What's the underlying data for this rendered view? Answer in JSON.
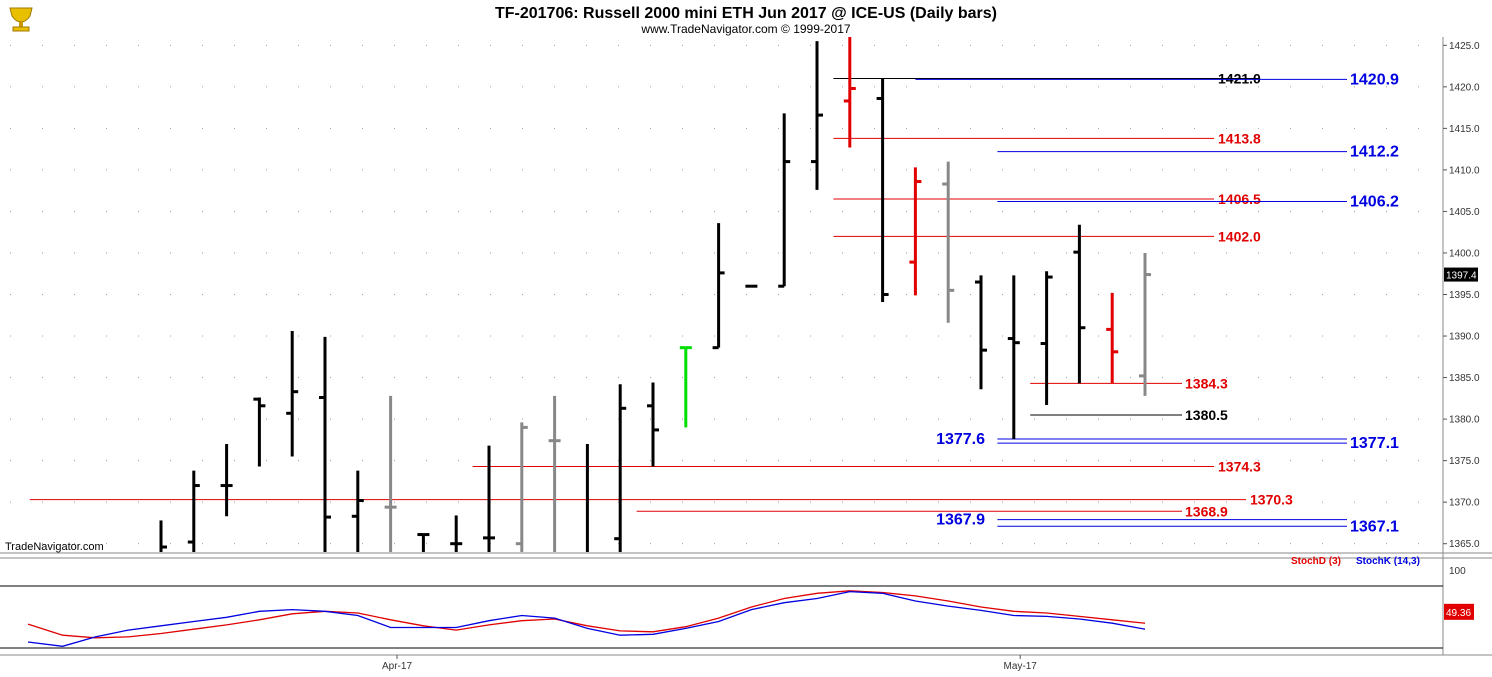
{
  "header": {
    "title": "TF-201706:  Russell 2000 mini ETH Jun 2017 @ ICE-US  (Daily bars)",
    "subtitle": "www.TradeNavigator.com © 1999-2017",
    "watermark": "TradeNavigator.com",
    "logo": "trophy-logo-icon"
  },
  "colors": {
    "black": "#000000",
    "red": "#e00000",
    "blue": "#0000e0",
    "gray": "#888888",
    "green": "#00dd00"
  },
  "chart_data": [
    {
      "type": "ohlc",
      "ylim": [
        1364,
        1426
      ],
      "yticks": [
        {
          "v": 1365,
          "label": "1365.0"
        },
        {
          "v": 1370,
          "label": "1370.0"
        },
        {
          "v": 1375,
          "label": "1375.0"
        },
        {
          "v": 1380,
          "label": "1380.0"
        },
        {
          "v": 1385,
          "label": "1385.0"
        },
        {
          "v": 1390,
          "label": "1390.0"
        },
        {
          "v": 1395,
          "label": "1395.0"
        },
        {
          "v": 1400,
          "label": "1400.0"
        },
        {
          "v": 1405,
          "label": "1405.0"
        },
        {
          "v": 1410,
          "label": "1410.0"
        },
        {
          "v": 1415,
          "label": "1415.0"
        },
        {
          "v": 1420,
          "label": "1420.0"
        },
        {
          "v": 1425,
          "label": "1425.0"
        }
      ],
      "last_price": "1397.4",
      "xlabels": [
        {
          "label": "Apr-17",
          "bar": 7.5
        },
        {
          "label": "May-17",
          "bar": 26.5
        }
      ],
      "bars": [
        {
          "h": 1367.8,
          "l": 1364,
          "o": 1364,
          "c": 1364.6,
          "color": "black"
        },
        {
          "h": 1373.8,
          "l": 1364,
          "o": 1365.2,
          "c": 1372.0,
          "color": "black"
        },
        {
          "h": 1377.0,
          "l": 1368.3,
          "o": 1372.0,
          "c": 1372.0,
          "color": "black"
        },
        {
          "h": 1382.6,
          "l": 1374.3,
          "o": 1382.4,
          "c": 1381.6,
          "color": "black"
        },
        {
          "h": 1390.6,
          "l": 1375.5,
          "o": 1380.7,
          "c": 1383.3,
          "color": "black"
        },
        {
          "h": 1389.9,
          "l": 1364,
          "o": 1382.6,
          "c": 1368.2,
          "color": "black"
        },
        {
          "h": 1373.8,
          "l": 1364,
          "o": 1368.3,
          "c": 1370.2,
          "color": "black"
        },
        {
          "h": 1382.8,
          "l": 1364,
          "o": 1369.4,
          "c": 1369.4,
          "color": "gray"
        },
        {
          "h": 1366.1,
          "l": 1364,
          "o": 1366.1,
          "c": 1366.1,
          "color": "black"
        },
        {
          "h": 1368.4,
          "l": 1364,
          "o": 1365.0,
          "c": 1365.0,
          "color": "black"
        },
        {
          "h": 1376.8,
          "l": 1364,
          "o": 1365.7,
          "c": 1365.7,
          "color": "black"
        },
        {
          "h": 1379.6,
          "l": 1364,
          "o": 1365.0,
          "c": 1379.0,
          "color": "gray"
        },
        {
          "h": 1382.8,
          "l": 1364,
          "o": 1377.4,
          "c": 1377.4,
          "color": "gray"
        },
        {
          "h": 1377.0,
          "l": 1364,
          "o": 1364,
          "c": 1364,
          "color": "black"
        },
        {
          "h": 1384.2,
          "l": 1364,
          "o": 1365.6,
          "c": 1381.3,
          "color": "black"
        },
        {
          "h": 1384.4,
          "l": 1374.3,
          "o": 1381.6,
          "c": 1378.7,
          "color": "black"
        },
        {
          "h": 1388.6,
          "l": 1379.0,
          "o": 1388.6,
          "c": 1388.6,
          "color": "green"
        },
        {
          "h": 1403.6,
          "l": 1388.6,
          "o": 1388.6,
          "c": 1397.6,
          "color": "black"
        },
        {
          "h": 1396.0,
          "l": 1395.9,
          "o": 1396.0,
          "c": 1396.0,
          "color": "black"
        },
        {
          "h": 1416.8,
          "l": 1396.0,
          "o": 1396.0,
          "c": 1411.0,
          "color": "black"
        },
        {
          "h": 1425.5,
          "l": 1407.6,
          "o": 1411.0,
          "c": 1416.6,
          "color": "black"
        },
        {
          "h": 1426.0,
          "l": 1412.7,
          "o": 1418.3,
          "c": 1419.8,
          "color": "red"
        },
        {
          "h": 1421.0,
          "l": 1394.1,
          "o": 1418.6,
          "c": 1395.0,
          "color": "black"
        },
        {
          "h": 1410.3,
          "l": 1394.9,
          "o": 1398.9,
          "c": 1408.6,
          "color": "red"
        },
        {
          "h": 1411.0,
          "l": 1391.6,
          "o": 1408.3,
          "c": 1395.5,
          "color": "gray"
        },
        {
          "h": 1397.3,
          "l": 1383.6,
          "o": 1396.5,
          "c": 1388.3,
          "color": "black"
        },
        {
          "h": 1397.3,
          "l": 1377.6,
          "o": 1389.7,
          "c": 1389.2,
          "color": "black"
        },
        {
          "h": 1397.8,
          "l": 1381.7,
          "o": 1389.1,
          "c": 1397.1,
          "color": "black"
        },
        {
          "h": 1403.4,
          "l": 1384.3,
          "o": 1400.1,
          "c": 1391.0,
          "color": "black"
        },
        {
          "h": 1395.2,
          "l": 1384.3,
          "o": 1390.8,
          "c": 1388.1,
          "color": "red"
        },
        {
          "h": 1400.0,
          "l": 1382.8,
          "o": 1385.2,
          "c": 1397.4,
          "color": "gray"
        }
      ],
      "levels": [
        {
          "value": 1421.0,
          "label": "1421.0",
          "color": "black",
          "from_bar": 20.5
        },
        {
          "value": 1420.9,
          "label": "1420.9",
          "color": "blue",
          "from_bar": 23.0
        },
        {
          "value": 1413.8,
          "label": "1413.8",
          "color": "red",
          "from_bar": 20.5
        },
        {
          "value": 1412.2,
          "label": "1412.2",
          "color": "blue",
          "from_bar": 25.5
        },
        {
          "value": 1406.5,
          "label": "1406.5",
          "color": "red",
          "from_bar": 20.5
        },
        {
          "value": 1406.2,
          "label": "1406.2",
          "color": "blue",
          "from_bar": 25.5
        },
        {
          "value": 1402.0,
          "label": "1402.0",
          "color": "red",
          "from_bar": 20.5
        },
        {
          "value": 1384.3,
          "label": "1384.3",
          "color": "red",
          "from_bar": 26.5
        },
        {
          "value": 1380.5,
          "label": "1380.5",
          "color": "black",
          "from_bar": 26.5
        },
        {
          "value": 1377.6,
          "label": "1377.6",
          "color": "blue",
          "from_bar": 25.5
        },
        {
          "value": 1377.1,
          "label": "1377.1",
          "color": "blue",
          "from_bar": 25.5
        },
        {
          "value": 1374.3,
          "label": "1374.3",
          "color": "red",
          "from_bar": 9.5
        },
        {
          "value": 1370.3,
          "label": "1370.3",
          "color": "red",
          "from_bar": -4.0
        },
        {
          "value": 1368.9,
          "label": "1368.9",
          "color": "red",
          "from_bar": 14.5
        },
        {
          "value": 1367.9,
          "label": "1367.9",
          "color": "blue",
          "from_bar": 25.5
        },
        {
          "value": 1367.1,
          "label": "1367.1",
          "color": "blue",
          "from_bar": 25.5
        }
      ]
    },
    {
      "type": "line",
      "ylim": [
        0,
        110
      ],
      "yticks": [
        {
          "v": 100,
          "label": "100"
        }
      ],
      "last_value": "49.36",
      "series": [
        {
          "name": "StochD (3)",
          "color": "red",
          "points": [
            [
              -4,
              35
            ],
            [
              -3,
              22
            ],
            [
              -2,
              19
            ],
            [
              -1,
              20
            ],
            [
              0,
              24
            ],
            [
              1,
              29
            ],
            [
              2,
              34
            ],
            [
              3,
              40
            ],
            [
              4,
              47
            ],
            [
              5,
              50
            ],
            [
              6,
              48
            ],
            [
              7,
              40
            ],
            [
              8,
              33
            ],
            [
              9,
              28
            ],
            [
              10,
              34
            ],
            [
              11,
              39
            ],
            [
              12,
              41
            ],
            [
              13,
              33
            ],
            [
              14,
              27
            ],
            [
              15,
              26
            ],
            [
              16,
              32
            ],
            [
              17,
              42
            ],
            [
              18,
              55
            ],
            [
              19,
              65
            ],
            [
              20,
              71
            ],
            [
              21,
              74
            ],
            [
              22,
              72
            ],
            [
              23,
              68
            ],
            [
              24,
              62
            ],
            [
              25,
              55
            ],
            [
              26,
              50
            ],
            [
              27,
              48
            ],
            [
              28,
              44
            ],
            [
              29,
              40
            ],
            [
              30,
              36
            ]
          ]
        },
        {
          "name": "StochK (14,3)",
          "color": "blue",
          "points": [
            [
              -4,
              14
            ],
            [
              -3,
              9
            ],
            [
              -2,
              20
            ],
            [
              -1,
              28
            ],
            [
              0,
              33
            ],
            [
              1,
              38
            ],
            [
              2,
              43
            ],
            [
              3,
              50
            ],
            [
              4,
              52
            ],
            [
              5,
              50
            ],
            [
              6,
              45
            ],
            [
              7,
              31
            ],
            [
              8,
              31
            ],
            [
              9,
              31
            ],
            [
              10,
              39
            ],
            [
              11,
              45
            ],
            [
              12,
              42
            ],
            [
              13,
              30
            ],
            [
              14,
              22
            ],
            [
              15,
              23
            ],
            [
              16,
              30
            ],
            [
              17,
              38
            ],
            [
              18,
              52
            ],
            [
              19,
              60
            ],
            [
              20,
              65
            ],
            [
              21,
              73
            ],
            [
              22,
              71
            ],
            [
              23,
              62
            ],
            [
              24,
              56
            ],
            [
              25,
              51
            ],
            [
              26,
              45
            ],
            [
              27,
              44
            ],
            [
              28,
              41
            ],
            [
              29,
              36
            ],
            [
              30,
              29
            ]
          ]
        }
      ]
    }
  ]
}
